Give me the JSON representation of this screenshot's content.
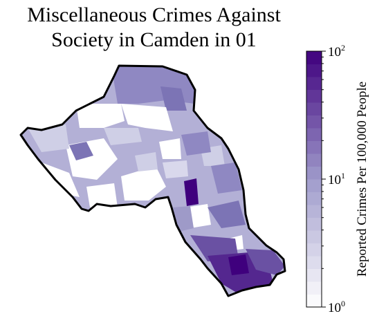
{
  "map": {
    "title_lines": [
      "Miscellaneous Crimes Against",
      "Society in Camden in 01"
    ],
    "colorbar": {
      "label": "Reported Crimes Per 100,000 People",
      "scale": "log",
      "range": [
        1,
        100
      ],
      "ticks": [
        {
          "base": "10",
          "exp": "0",
          "value": 1
        },
        {
          "base": "10",
          "exp": "1",
          "value": 10
        },
        {
          "base": "10",
          "exp": "2",
          "value": 100
        }
      ],
      "color_low": "#ffffff",
      "color_mid": "#9f9bcb",
      "color_high": "#3f007d",
      "bands": 20
    },
    "colors": {
      "boundary": "#000000",
      "no_data": "#ffffff",
      "light": "#cfcfe6",
      "medium": "#9e9ac8",
      "medium_dark": "#7c74b5",
      "dark": "#5a3a9a",
      "darkest": "#3f007d"
    }
  }
}
